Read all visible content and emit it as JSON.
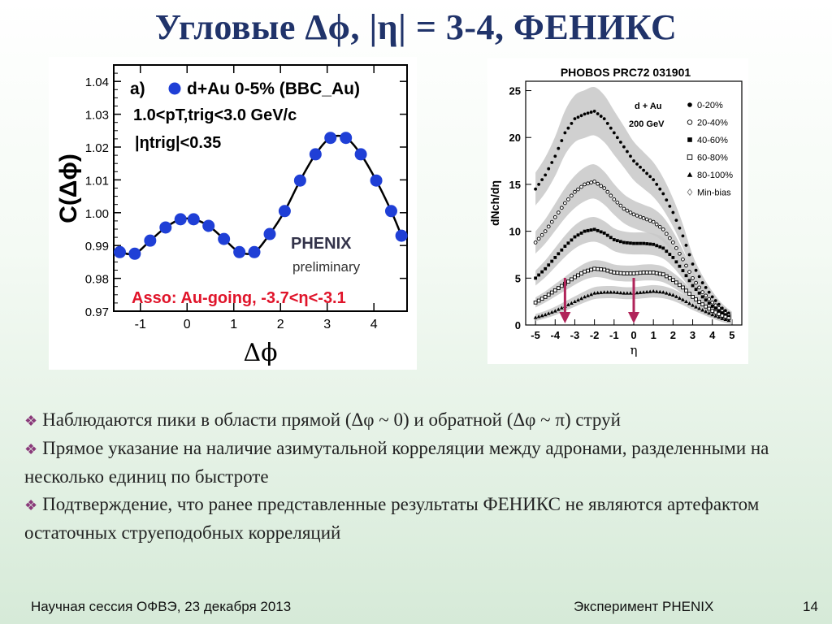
{
  "slide": {
    "title": "Угловые Δϕ, |η| = 3-4, ФЕНИКС"
  },
  "bullets": [
    "Наблюдаются пики в области прямой (Δφ ~ 0) и обратной (Δφ ~ π) струй",
    "Прямое указание на наличие азимутальной корреляции между адронами, разделенными на несколько единиц по быстроте",
    "Подтверждение, что ранее представленные результаты ФЕНИКС не являются артефактом остаточных струеподобных корреляций"
  ],
  "bullet_icon": "diamond-bullet-icon",
  "footer": {
    "left": "Научная сессия ОФВЭ,  23 декабря 2013",
    "center": "Эксперимент PHENIX",
    "page": "14"
  },
  "colors": {
    "title": "#20336a",
    "marker_blue": "#1f3fd6",
    "asso_red": "#e0142a",
    "arrow": "#b0245a",
    "band_gray": "#c8c8c8"
  },
  "chart_data": [
    {
      "type": "scatter",
      "panel_label": "a)",
      "legend": "d+Au 0-5% (BBC_Au)",
      "cut_lines": [
        "1.0<pT,trig<3.0 GeV/c",
        "|ηtrig|<0.35"
      ],
      "annotation": "Asso: Au-going, -3.7<η<-3.1",
      "watermark": [
        "PHENIX",
        "preliminary"
      ],
      "xlabel": "Δϕ",
      "ylabel": "C(Δϕ)",
      "xlim": [
        -1.57,
        4.71
      ],
      "ylim": [
        0.97,
        1.045
      ],
      "x_ticks": [
        "-1",
        "0",
        "1",
        "2",
        "3",
        "4"
      ],
      "y_ticks": [
        "0.97",
        "0.98",
        "0.99",
        "1.00",
        "1.01",
        "1.02",
        "1.03",
        "1.04"
      ],
      "series": [
        {
          "name": "d+Au 0-5% (BBC_Au)",
          "x": [
            -1.44,
            -1.12,
            -0.79,
            -0.46,
            -0.14,
            0.14,
            0.46,
            0.79,
            1.12,
            1.44,
            1.77,
            2.09,
            2.42,
            2.75,
            3.07,
            3.4,
            3.72,
            4.05,
            4.37,
            4.59
          ],
          "y": [
            0.988,
            0.9875,
            0.9915,
            0.9955,
            0.998,
            0.998,
            0.996,
            0.992,
            0.988,
            0.988,
            0.9935,
            1.0005,
            1.0098,
            1.0178,
            1.0228,
            1.0228,
            1.0178,
            1.0098,
            1.0005,
            0.993
          ]
        }
      ],
      "fit": "smooth curve through points"
    },
    {
      "type": "scatter",
      "title": "PHOBOS PRC72 031901",
      "legend_header": [
        "d + Au",
        "200 GeV"
      ],
      "xlabel": "η",
      "ylabel": "dNch/dη",
      "xlim": [
        -5.5,
        5.5
      ],
      "ylim": [
        0,
        26
      ],
      "x_ticks": [
        "-5",
        "-4",
        "-3",
        "-2",
        "-1",
        "0",
        "1",
        "2",
        "3",
        "4",
        "5"
      ],
      "y_ticks": [
        "0",
        "5",
        "10",
        "15",
        "20",
        "25"
      ],
      "arrows_at_eta": [
        -3.5,
        0.0
      ],
      "series": [
        {
          "name": "0-20%",
          "marker": "filled-circle",
          "x": [
            -5,
            -4.5,
            -4,
            -3.5,
            -3,
            -2.5,
            -2,
            -1.5,
            -1,
            -0.5,
            0,
            0.5,
            1,
            1.5,
            2,
            2.5,
            3,
            3.5,
            4,
            4.5,
            5
          ],
          "y": [
            14.5,
            16,
            18,
            20.5,
            22,
            22.5,
            22.8,
            22,
            20.5,
            19,
            17.5,
            16.5,
            15.5,
            14,
            12,
            9.5,
            6.5,
            4.5,
            3,
            1.8,
            1
          ]
        },
        {
          "name": "20-40%",
          "marker": "open-circle",
          "x": [
            -5,
            -4.5,
            -4,
            -3.5,
            -3,
            -2.5,
            -2,
            -1.5,
            -1,
            -0.5,
            0,
            0.5,
            1,
            1.5,
            2,
            2.5,
            3,
            3.5,
            4,
            4.5,
            5
          ],
          "y": [
            8.8,
            10,
            11.5,
            13,
            14.2,
            15,
            15.3,
            14.6,
            13.4,
            12.4,
            11.8,
            11.4,
            11,
            10.2,
            8.8,
            7,
            5,
            3.5,
            2.4,
            1.5,
            0.8
          ]
        },
        {
          "name": "40-60%",
          "marker": "filled-square",
          "x": [
            -5,
            -4.5,
            -4,
            -3.5,
            -3,
            -2.5,
            -2,
            -1.5,
            -1,
            -0.5,
            0,
            0.5,
            1,
            1.5,
            2,
            2.5,
            3,
            3.5,
            4,
            4.5,
            5
          ],
          "y": [
            5,
            6,
            7.2,
            8.4,
            9.4,
            10,
            10.2,
            9.8,
            9.1,
            8.8,
            8.7,
            8.7,
            8.6,
            8.2,
            7.2,
            5.8,
            4.2,
            3,
            2,
            1.3,
            0.7
          ]
        },
        {
          "name": "60-80%",
          "marker": "open-square",
          "x": [
            -5,
            -4.5,
            -4,
            -3.5,
            -3,
            -2.5,
            -2,
            -1.5,
            -1,
            -0.5,
            0,
            0.5,
            1,
            1.5,
            2,
            2.5,
            3,
            3.5,
            4,
            4.5,
            5
          ],
          "y": [
            2.4,
            3,
            3.7,
            4.4,
            5.1,
            5.7,
            6,
            5.9,
            5.6,
            5.5,
            5.5,
            5.6,
            5.6,
            5.4,
            4.8,
            4,
            3,
            2.2,
            1.5,
            1,
            0.6
          ]
        },
        {
          "name": "80-100%",
          "marker": "filled-triangle",
          "x": [
            -5,
            -4.5,
            -4,
            -3.5,
            -3,
            -2.5,
            -2,
            -1.5,
            -1,
            -0.5,
            0,
            0.5,
            1,
            1.5,
            2,
            2.5,
            3,
            3.5,
            4,
            4.5,
            5
          ],
          "y": [
            0.8,
            1.1,
            1.5,
            2,
            2.5,
            3,
            3.4,
            3.5,
            3.5,
            3.4,
            3.4,
            3.5,
            3.6,
            3.5,
            3.2,
            2.7,
            2.1,
            1.6,
            1.1,
            0.7,
            0.4
          ]
        },
        {
          "name": "Min-bias",
          "marker": "open-diamond",
          "x": [],
          "y": []
        }
      ]
    }
  ]
}
